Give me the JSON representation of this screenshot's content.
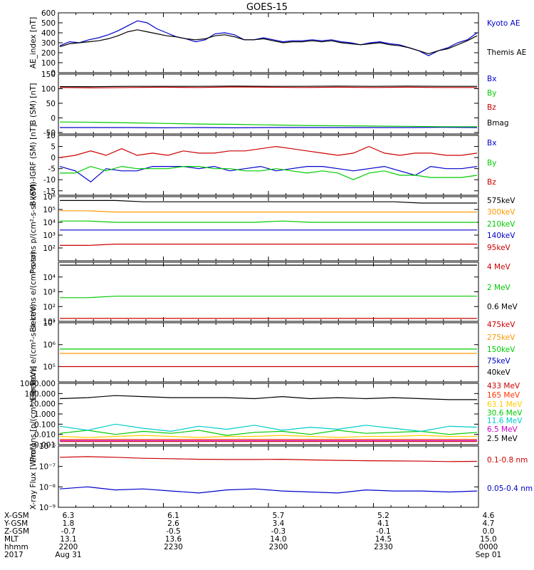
{
  "title": "GOES-15",
  "chart_data": [
    {
      "type": "line",
      "ylabel": "AE_index [nT]",
      "ylim": [
        0,
        600
      ],
      "ticks": [
        {
          "v": 0,
          "label": "0"
        },
        {
          "v": 100,
          "label": "100"
        },
        {
          "v": 200,
          "label": "200"
        },
        {
          "v": 300,
          "label": "300"
        },
        {
          "v": 400,
          "label": "400"
        },
        {
          "v": 500,
          "label": "500"
        },
        {
          "v": 600,
          "label": "600"
        }
      ],
      "series": [
        {
          "name": "Kyoto AE",
          "color": "#0000cc",
          "values": [
            270,
            310,
            300,
            330,
            350,
            380,
            420,
            470,
            520,
            500,
            440,
            400,
            360,
            340,
            310,
            330,
            390,
            400,
            380,
            330,
            330,
            350,
            330,
            310,
            320,
            320,
            330,
            320,
            330,
            310,
            300,
            280,
            300,
            310,
            290,
            280,
            250,
            220,
            170,
            220,
            250,
            300,
            330,
            400
          ]
        },
        {
          "name": "Themis AE",
          "color": "#000000",
          "values": [
            260,
            290,
            300,
            310,
            320,
            340,
            370,
            410,
            430,
            410,
            390,
            370,
            360,
            340,
            330,
            340,
            370,
            380,
            360,
            330,
            330,
            340,
            320,
            300,
            310,
            310,
            320,
            310,
            320,
            300,
            290,
            280,
            290,
            300,
            280,
            270,
            250,
            220,
            190,
            220,
            240,
            280,
            320,
            370
          ]
        }
      ]
    },
    {
      "type": "line",
      "ylabel": "B (SM) [nT]",
      "ylim": [
        -55,
        150
      ],
      "ticks": [
        {
          "v": -50,
          "label": "-50"
        },
        {
          "v": 0,
          "label": "0"
        },
        {
          "v": 50,
          "label": "50"
        },
        {
          "v": 100,
          "label": "100"
        },
        {
          "v": 150,
          "label": "150"
        }
      ],
      "series": [
        {
          "name": "Bx",
          "color": "#0000cc",
          "values": [
            -33,
            -33,
            -33,
            -34,
            -33,
            -34,
            -33,
            -33,
            -33,
            -33,
            -33,
            -32,
            -33
          ]
        },
        {
          "name": "By",
          "color": "#00cc00",
          "values": [
            -14,
            -15,
            -17,
            -19,
            -21,
            -22,
            -24,
            -26,
            -27,
            -28,
            -29,
            -30,
            -30
          ]
        },
        {
          "name": "Bz",
          "color": "#cc0000",
          "values": [
            104,
            103,
            104,
            105,
            104,
            106,
            105,
            104,
            105,
            104,
            105,
            104,
            104
          ]
        },
        {
          "name": "Bmag",
          "color": "#000000",
          "values": [
            107,
            107,
            108,
            108,
            108,
            109,
            108,
            108,
            109,
            108,
            109,
            108,
            108
          ]
        }
      ]
    },
    {
      "type": "line",
      "ylabel": "B (SM)-IGRF (SM) [nT]",
      "ylim": [
        -17,
        10
      ],
      "ticks": [
        {
          "v": -15,
          "label": "-15"
        },
        {
          "v": -10,
          "label": "-10"
        },
        {
          "v": -5,
          "label": "-5"
        },
        {
          "v": 0,
          "label": "0"
        },
        {
          "v": 5,
          "label": "5"
        },
        {
          "v": 10,
          "label": "10"
        }
      ],
      "series": [
        {
          "name": "Bx",
          "color": "#0000cc",
          "values": [
            -4,
            -6,
            -11,
            -5,
            -6,
            -6,
            -4,
            -4,
            -4,
            -5,
            -4,
            -6,
            -5,
            -4,
            -6,
            -5,
            -4,
            -4,
            -5,
            -6,
            -5,
            -4,
            -6,
            -8,
            -4,
            -5,
            -5,
            -4
          ]
        },
        {
          "name": "By",
          "color": "#00cc00",
          "values": [
            -7,
            -7,
            -4,
            -6,
            -4,
            -5,
            -5,
            -5,
            -4,
            -4,
            -5,
            -5,
            -6,
            -6,
            -5,
            -6,
            -7,
            -6,
            -7,
            -10,
            -7,
            -6,
            -8,
            -8,
            -9,
            -9,
            -9,
            -8
          ]
        },
        {
          "name": "Bz",
          "color": "#cc0000",
          "values": [
            0,
            1,
            3,
            1,
            4,
            1,
            2,
            1,
            3,
            2,
            2,
            3,
            3,
            4,
            5,
            4,
            3,
            2,
            1,
            2,
            5,
            2,
            1,
            2,
            2,
            1,
            1,
            2
          ]
        }
      ]
    },
    {
      "type": "line",
      "scale": "log",
      "ylabel": "Protons p/(cm²-s-sr-keV)",
      "ylim": [
        1,
        6
      ],
      "ticks": [
        {
          "v": 2,
          "label": "10²"
        },
        {
          "v": 3,
          "label": "10³"
        },
        {
          "v": 4,
          "label": "10⁴"
        },
        {
          "v": 5,
          "label": "10⁵"
        },
        {
          "v": 6,
          "label": "10⁶"
        }
      ],
      "series": [
        {
          "name": "575keV",
          "color": "#000000",
          "values": [
            5.7,
            5.7,
            5.7,
            5.6,
            5.6,
            5.6,
            5.6,
            5.6,
            5.6,
            5.6,
            5.6,
            5.6,
            5.6,
            5.5,
            5.5,
            5.5
          ]
        },
        {
          "name": "300keV",
          "color": "#ff9900",
          "values": [
            4.9,
            4.9,
            4.8,
            4.8,
            4.8,
            4.8,
            4.8,
            4.8,
            4.8,
            4.8,
            4.8,
            4.8,
            4.8,
            4.8,
            4.8,
            4.8
          ]
        },
        {
          "name": "210keV",
          "color": "#00cc00",
          "values": [
            4.1,
            4.1,
            4.0,
            4.0,
            4.0,
            4.0,
            4.0,
            4.0,
            4.1,
            4.0,
            4.0,
            4.0,
            4.0,
            4.0,
            4.0,
            4.0
          ]
        },
        {
          "name": "140keV",
          "color": "#0000cc",
          "values": [
            3.4,
            3.4,
            3.4,
            3.4,
            3.4,
            3.4,
            3.4,
            3.4,
            3.4,
            3.4,
            3.4,
            3.4,
            3.4,
            3.4,
            3.4,
            3.4
          ]
        },
        {
          "name": "95keV",
          "color": "#cc0000",
          "values": [
            2.2,
            2.2,
            2.3,
            2.3,
            2.3,
            2.3,
            2.3,
            2.3,
            2.3,
            2.3,
            2.3,
            2.3,
            2.3,
            2.3,
            2.3,
            2.3
          ]
        }
      ]
    },
    {
      "type": "line",
      "scale": "log",
      "ylabel": "Electrons e/(cm²-s-sr)",
      "ylim": [
        1,
        5
      ],
      "ticks": [
        {
          "v": 1,
          "label": "10¹"
        },
        {
          "v": 2,
          "label": "10²"
        },
        {
          "v": 3,
          "label": "10³"
        },
        {
          "v": 4,
          "label": "10⁴"
        }
      ],
      "series": [
        {
          "name": "4 MeV",
          "color": "#cc0000",
          "values": [
            1.2,
            1.2,
            1.2,
            1.2,
            1.2,
            1.2,
            1.2,
            1.2,
            1.2,
            1.2,
            1.2,
            1.2,
            1.2,
            1.2,
            1.2,
            1.2
          ]
        },
        {
          "name": "2 MeV",
          "color": "#00cc00",
          "values": [
            2.6,
            2.6,
            2.7,
            2.7,
            2.7,
            2.7,
            2.7,
            2.7,
            2.7,
            2.7,
            2.7,
            2.7,
            2.7,
            2.7,
            2.7,
            2.7
          ]
        },
        {
          "name": "0.6 MeV",
          "color": "#000000",
          "values": [
            4.8,
            4.8,
            4.8,
            4.8,
            4.8,
            4.8,
            4.8,
            4.8,
            4.8,
            4.8,
            4.8,
            4.8,
            4.8,
            4.8,
            4.8,
            4.8
          ]
        }
      ]
    },
    {
      "type": "line",
      "scale": "log",
      "ylabel": "Electrons e/(cm²-s-sr-keV)",
      "ylim": [
        4.3,
        7
      ],
      "ticks": [
        {
          "v": 5,
          "label": "10⁵"
        },
        {
          "v": 6,
          "label": "10⁶"
        },
        {
          "v": 7,
          "label": "10⁷"
        }
      ],
      "series": [
        {
          "name": "475keV",
          "color": "#cc0000",
          "values": [
            5.0,
            5.0,
            5.0,
            5.0,
            5.0,
            5.0,
            5.0,
            5.0,
            5.0,
            5.0,
            5.0,
            5.0,
            5.0,
            5.0,
            5.0,
            5.0
          ]
        },
        {
          "name": "275keV",
          "color": "#ff9900",
          "values": [
            5.6,
            5.6,
            5.6,
            5.6,
            5.6,
            5.6,
            5.6,
            5.6,
            5.6,
            5.6,
            5.6,
            5.6,
            5.6,
            5.6,
            5.6,
            5.6
          ]
        },
        {
          "name": "150keV",
          "color": "#00cc00",
          "values": [
            5.8,
            5.8,
            5.8,
            5.8,
            5.8,
            5.8,
            5.8,
            5.8,
            5.8,
            5.8,
            5.8,
            5.8,
            5.8,
            5.8,
            5.8,
            5.8
          ]
        },
        {
          "name": "75keV",
          "color": "#0000cc",
          "values": []
        },
        {
          "name": "40keV",
          "color": "#000000",
          "values": []
        }
      ]
    },
    {
      "type": "line",
      "scale": "log",
      "ylabel": "Protons [p/(cm²-s-sr-keV)]",
      "ylim": [
        -3,
        3
      ],
      "ticks": [
        {
          "v": -3,
          "label": "0.001"
        },
        {
          "v": -2,
          "label": "0.010"
        },
        {
          "v": -1,
          "label": "0.100"
        },
        {
          "v": 0,
          "label": "1.000"
        },
        {
          "v": 1,
          "label": "10.000"
        },
        {
          "v": 2,
          "label": "100.000"
        },
        {
          "v": 3,
          "label": "1000.000"
        }
      ],
      "series": [
        {
          "name": "433 MeV",
          "color": "#cc0000",
          "values": [
            -2.7,
            -2.7,
            -2.7,
            -2.7,
            -2.7,
            -2.7,
            -2.7,
            -2.7,
            -2.7,
            -2.7,
            -2.7,
            -2.7,
            -2.7,
            -2.7,
            -2.7,
            -2.7
          ]
        },
        {
          "name": "165 MeV",
          "color": "#ff3300",
          "values": [
            -2.5,
            -2.5,
            -2.5,
            -2.5,
            -2.5,
            -2.5,
            -2.5,
            -2.5,
            -2.5,
            -2.5,
            -2.5,
            -2.5,
            -2.5,
            -2.5,
            -2.5,
            -2.5
          ]
        },
        {
          "name": "63.1 MeV",
          "color": "#ffcc00",
          "values": [
            -2.2,
            -2.3,
            -2.2,
            -2.1,
            -2.2,
            -2.3,
            -2.2,
            -2.2,
            -2.1,
            -2.2,
            -2.3,
            -2.2,
            -2.2,
            -2.1,
            -2.2,
            -2.2
          ]
        },
        {
          "name": "30.6 MeV",
          "color": "#00cc00",
          "values": [
            -1.9,
            -1.6,
            -2.0,
            -1.7,
            -1.9,
            -1.6,
            -2.1,
            -1.8,
            -1.7,
            -2.0,
            -1.6,
            -1.9,
            -1.8,
            -1.7,
            -2.0,
            -1.8
          ]
        },
        {
          "name": "11.6 MeV",
          "color": "#00cccc",
          "values": [
            -1.2,
            -1.6,
            -1.0,
            -1.4,
            -1.7,
            -1.2,
            -1.5,
            -1.1,
            -1.6,
            -1.3,
            -1.5,
            -1.1,
            -1.4,
            -1.7,
            -1.2,
            -1.3
          ]
        },
        {
          "name": "6.5 MeV",
          "color": "#cc00cc",
          "values": [
            -2.6,
            -2.6,
            -2.6,
            -2.6,
            -2.6,
            -2.6,
            -2.6,
            -2.6,
            -2.6,
            -2.6,
            -2.6,
            -2.6,
            -2.6,
            -2.6,
            -2.6,
            -2.6
          ]
        },
        {
          "name": "2.5 MeV",
          "color": "#000000",
          "values": [
            1.5,
            1.6,
            1.8,
            1.7,
            1.6,
            1.6,
            1.6,
            1.5,
            1.7,
            1.5,
            1.6,
            1.5,
            1.6,
            1.5,
            1.4,
            1.4
          ]
        }
      ]
    },
    {
      "type": "line",
      "scale": "log",
      "ylabel": "X-ray Flux [W/m²]",
      "ylim": [
        -9,
        -6
      ],
      "ticks": [
        {
          "v": -9,
          "label": "10⁻⁹"
        },
        {
          "v": -8,
          "label": "10⁻⁸"
        },
        {
          "v": -7,
          "label": "10⁻⁷"
        },
        {
          "v": -6,
          "label": "10⁻⁶"
        }
      ],
      "series": [
        {
          "name": "0.1-0.8 nm",
          "color": "#cc0000",
          "values": [
            -6.55,
            -6.52,
            -6.55,
            -6.6,
            -6.62,
            -6.65,
            -6.66,
            -6.66,
            -6.65,
            -6.68,
            -6.7,
            -6.72,
            -6.73,
            -6.74,
            -6.76,
            -6.75
          ]
        },
        {
          "name": "0.05-0.4 nm",
          "color": "#0000cc",
          "values": [
            -8.1,
            -8.0,
            -8.15,
            -8.1,
            -8.2,
            -8.3,
            -8.15,
            -8.1,
            -8.2,
            -8.25,
            -8.3,
            -8.15,
            -8.2,
            -8.2,
            -8.25,
            -8.2
          ]
        }
      ]
    }
  ],
  "ephemeris": {
    "labels": [
      "X-GSM",
      "Y-GSM",
      "Z-GSM",
      "MLT",
      "hhmm",
      "2017"
    ],
    "columns": [
      [
        "6.3",
        "1.8",
        "-0.7",
        "13.1",
        "2200",
        "Aug 31"
      ],
      [
        "6.1",
        "2.6",
        "-0.5",
        "13.6",
        "2230",
        ""
      ],
      [
        "5.7",
        "3.4",
        "-0.3",
        "14.0",
        "2300",
        ""
      ],
      [
        "5.2",
        "4.1",
        "-0.1",
        "14.5",
        "2330",
        ""
      ],
      [
        "4.6",
        "4.7",
        "0.0",
        "15.0",
        "0000",
        "Sep 01"
      ]
    ]
  }
}
